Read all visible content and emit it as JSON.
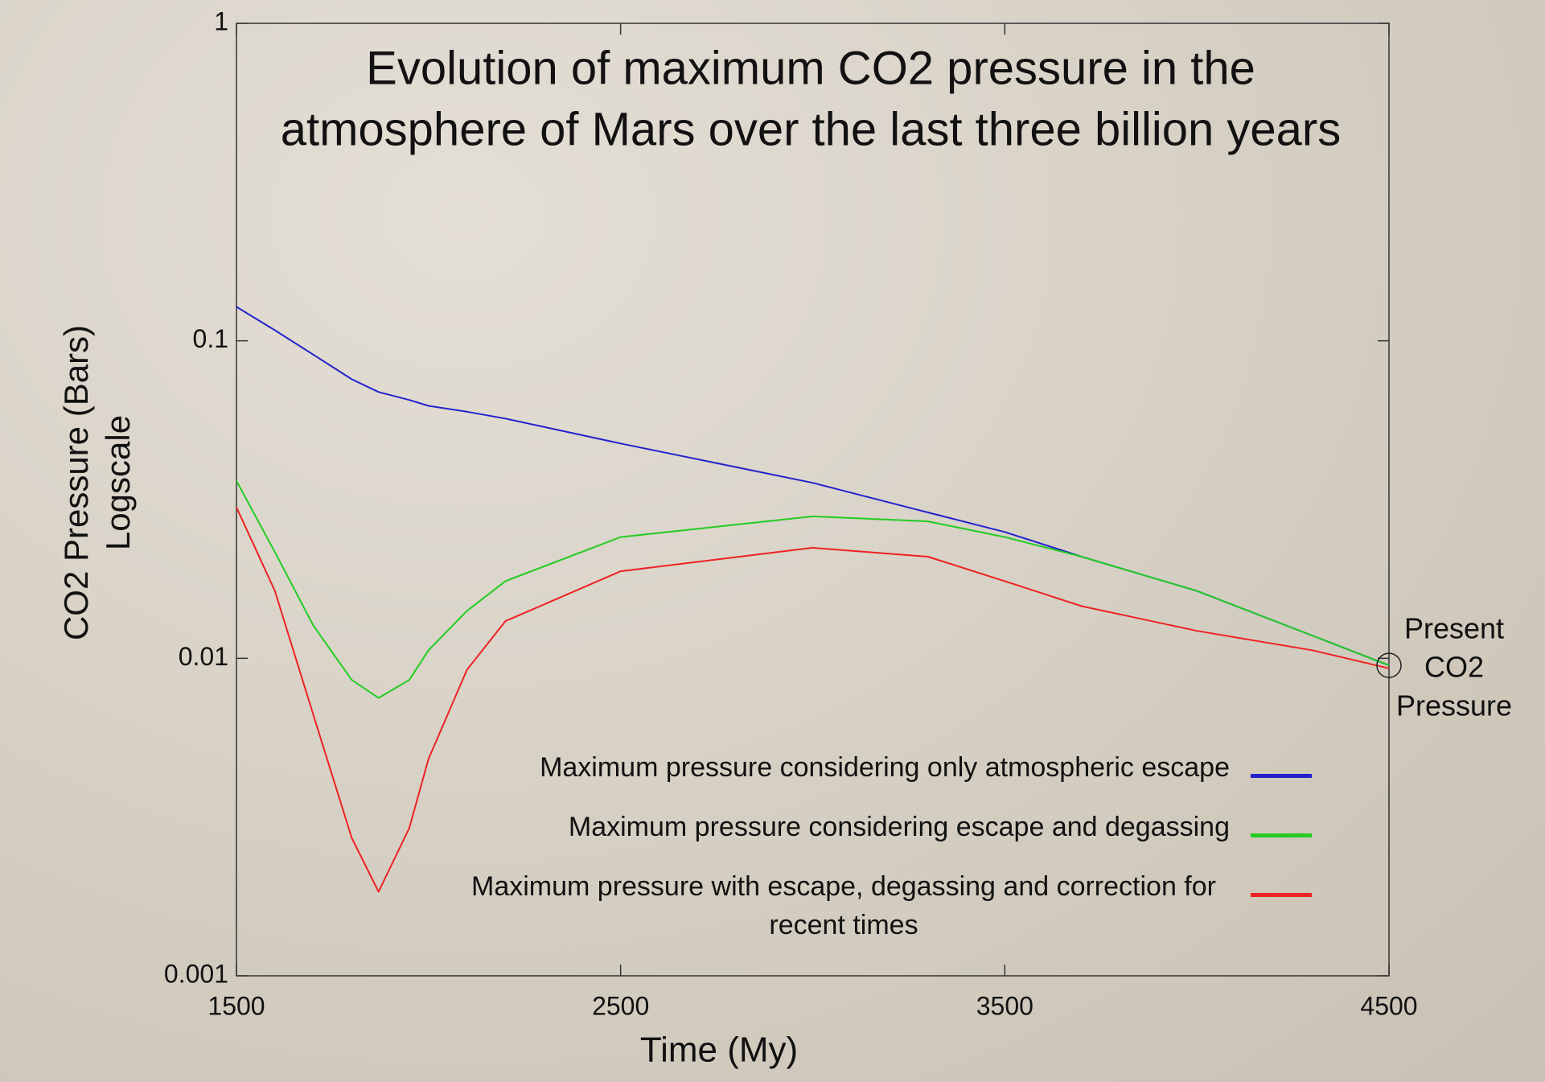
{
  "chart_data": {
    "type": "line",
    "title": [
      "Evolution of maximum CO2 pressure in the",
      "atmosphere of Mars over the last three billion years"
    ],
    "xlabel": "Time (My)",
    "ylabel": [
      "CO2 Pressure (Bars)",
      "Logscale"
    ],
    "annotation": [
      "Present",
      "CO2",
      "Pressure"
    ],
    "x": [
      1500,
      1600,
      1700,
      1800,
      1870,
      1950,
      2000,
      2100,
      2200,
      2500,
      3000,
      3300,
      3500,
      3700,
      4000,
      4300,
      4500
    ],
    "series": [
      {
        "name": "Maximum pressure considering only atmospheric escape",
        "color": "#2222cc",
        "values": [
          0.128,
          0.108,
          0.0905,
          0.0757,
          0.069,
          0.0651,
          0.0624,
          0.0598,
          0.0569,
          0.0475,
          0.0357,
          0.0288,
          0.025,
          0.0209,
          0.0163,
          0.0118,
          0.0095
        ]
      },
      {
        "name": "Maximum pressure considering escape and degassing",
        "color": "#22cc22",
        "values": [
          0.0362,
          0.0216,
          0.0127,
          0.00855,
          0.0075,
          0.00855,
          0.0106,
          0.0141,
          0.0175,
          0.0241,
          0.028,
          0.027,
          0.0241,
          0.0209,
          0.0163,
          0.0118,
          0.0095
        ]
      },
      {
        "name": "Maximum pressure with escape, degassing and correction for recent times",
        "color": "#ee2222",
        "values": [
          0.0299,
          0.0163,
          0.00665,
          0.00272,
          0.00184,
          0.00292,
          0.00482,
          0.0092,
          0.0131,
          0.0188,
          0.0223,
          0.0209,
          0.0175,
          0.0146,
          0.0122,
          0.0106,
          0.0093
        ]
      }
    ],
    "xlim": [
      1500,
      4500
    ],
    "xticks": [
      1500,
      2500,
      3500,
      4500
    ],
    "ylim": [
      0.001,
      1
    ],
    "yticks": [
      1,
      0.1,
      0.01,
      0.001
    ],
    "yscale": "log",
    "grid": false
  }
}
